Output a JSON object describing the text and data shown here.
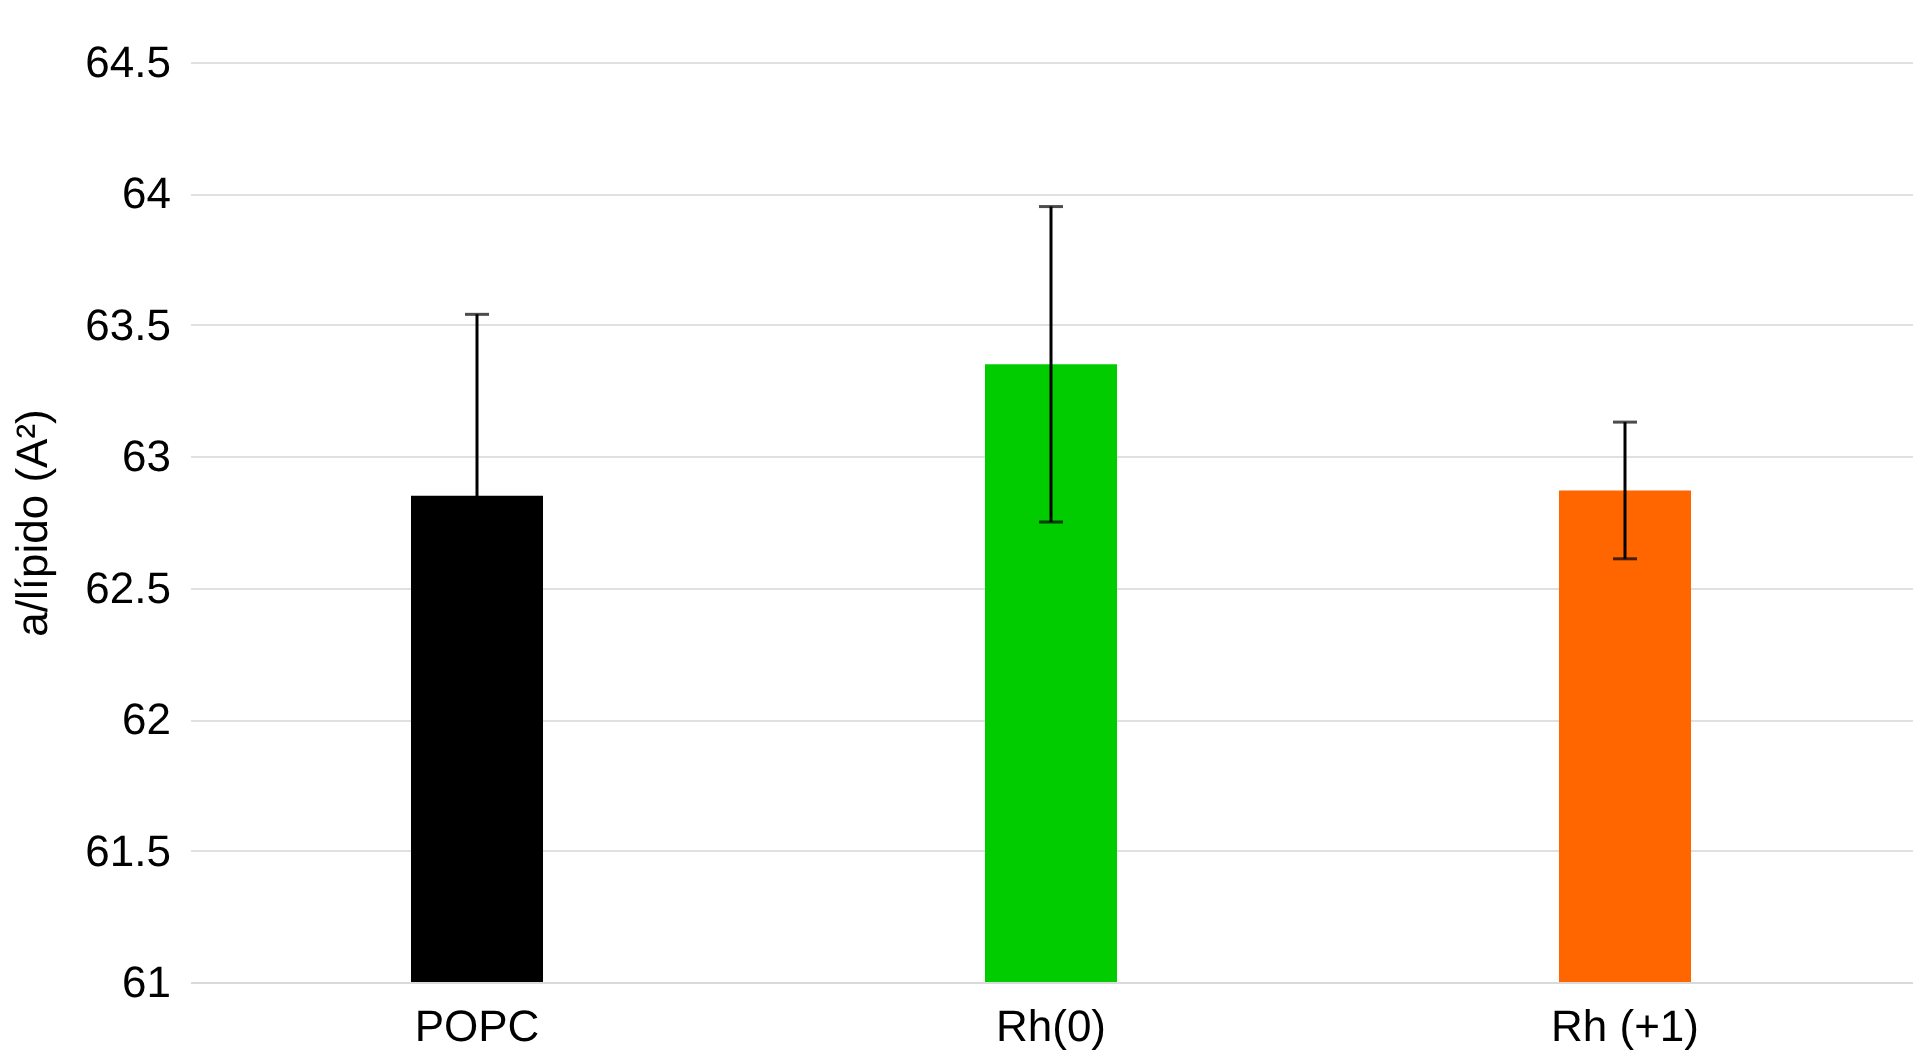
{
  "chart_data": {
    "type": "bar",
    "ylabel": "a/lípido (A²)",
    "categories": [
      "POPC",
      "Rh(0)",
      "Rh (+1)"
    ],
    "values": [
      62.85,
      63.35,
      62.87
    ],
    "colors": [
      "#000000",
      "#00cc00",
      "#ff6600"
    ],
    "errors": [
      0.69,
      0.6,
      0.26
    ],
    "ylim": [
      61,
      64.5
    ],
    "yticks": [
      61,
      61.5,
      62,
      62.5,
      63,
      63.5,
      64,
      64.5
    ],
    "grid": "y"
  }
}
